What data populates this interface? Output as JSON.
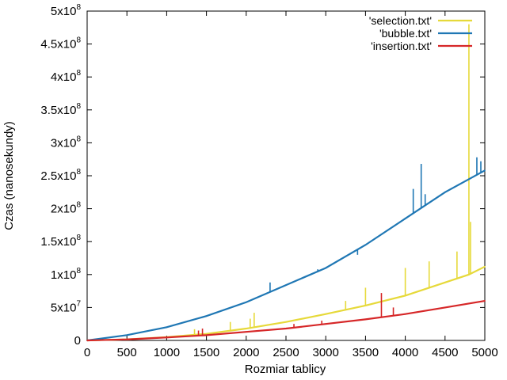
{
  "chart_data": {
    "type": "line",
    "xlabel": "Rozmiar tablicy",
    "ylabel": "Czas (nanosekundy)",
    "xlim": [
      0,
      5000
    ],
    "ylim": [
      0,
      500000000
    ],
    "x_ticks": [
      0,
      500,
      1000,
      1500,
      2000,
      2500,
      3000,
      3500,
      4000,
      4500,
      5000
    ],
    "x_tick_labels": [
      "0",
      "500",
      "1000",
      "1500",
      "2000",
      "2500",
      "3000",
      "3500",
      "4000",
      "4500",
      "5000"
    ],
    "y_ticks": [
      0,
      50000000,
      100000000,
      150000000,
      200000000,
      250000000,
      300000000,
      350000000,
      400000000,
      450000000,
      500000000
    ],
    "y_tick_labels": [
      {
        "mant": "0",
        "exp": ""
      },
      {
        "mant": "5x10",
        "exp": "7"
      },
      {
        "mant": "1x10",
        "exp": "8"
      },
      {
        "mant": "1.5x10",
        "exp": "8"
      },
      {
        "mant": "2x10",
        "exp": "8"
      },
      {
        "mant": "2.5x10",
        "exp": "8"
      },
      {
        "mant": "3x10",
        "exp": "8"
      },
      {
        "mant": "3.5x10",
        "exp": "8"
      },
      {
        "mant": "4x10",
        "exp": "8"
      },
      {
        "mant": "4.5x10",
        "exp": "8"
      },
      {
        "mant": "5x10",
        "exp": "8"
      }
    ],
    "legend_position": "top-right",
    "series": [
      {
        "name": "'selection.txt'",
        "color": "#e6d93a",
        "x": [
          0,
          500,
          1000,
          1500,
          2000,
          2500,
          3000,
          3500,
          4000,
          4500,
          4800,
          5000
        ],
        "y": [
          0,
          1500000,
          5000000,
          10000000,
          18000000,
          28000000,
          40000000,
          53000000,
          68000000,
          88000000,
          100000000,
          112000000
        ],
        "spikes": [
          [
            1350,
            17000000
          ],
          [
            1800,
            28000000
          ],
          [
            2050,
            33000000
          ],
          [
            2100,
            42000000
          ],
          [
            3250,
            60000000
          ],
          [
            3500,
            80000000
          ],
          [
            4000,
            110000000
          ],
          [
            4300,
            120000000
          ],
          [
            4650,
            135000000
          ],
          [
            4800,
            480000000
          ],
          [
            4820,
            180000000
          ]
        ]
      },
      {
        "name": "'bubble.txt'",
        "color": "#1f77b4",
        "x": [
          0,
          500,
          1000,
          1500,
          2000,
          2500,
          3000,
          3500,
          4000,
          4500,
          5000
        ],
        "y": [
          0,
          8000000,
          20000000,
          37000000,
          58000000,
          84000000,
          110000000,
          145000000,
          185000000,
          225000000,
          258000000
        ],
        "spikes": [
          [
            2300,
            88000000
          ],
          [
            2900,
            108000000
          ],
          [
            3400,
            130000000
          ],
          [
            4100,
            230000000
          ],
          [
            4200,
            268000000
          ],
          [
            4250,
            222000000
          ],
          [
            4900,
            278000000
          ],
          [
            4950,
            272000000
          ]
        ]
      },
      {
        "name": "'insertion.txt'",
        "color": "#d62728",
        "x": [
          0,
          500,
          1000,
          1500,
          2000,
          2500,
          3000,
          3500,
          4000,
          4500,
          5000
        ],
        "y": [
          0,
          1500000,
          4500000,
          8000000,
          13000000,
          18000000,
          25000000,
          32000000,
          40000000,
          50000000,
          60000000
        ],
        "spikes": [
          [
            1400,
            15000000
          ],
          [
            1450,
            18000000
          ],
          [
            2600,
            25000000
          ],
          [
            2950,
            30000000
          ],
          [
            3700,
            72000000
          ],
          [
            3850,
            50000000
          ]
        ]
      }
    ]
  }
}
